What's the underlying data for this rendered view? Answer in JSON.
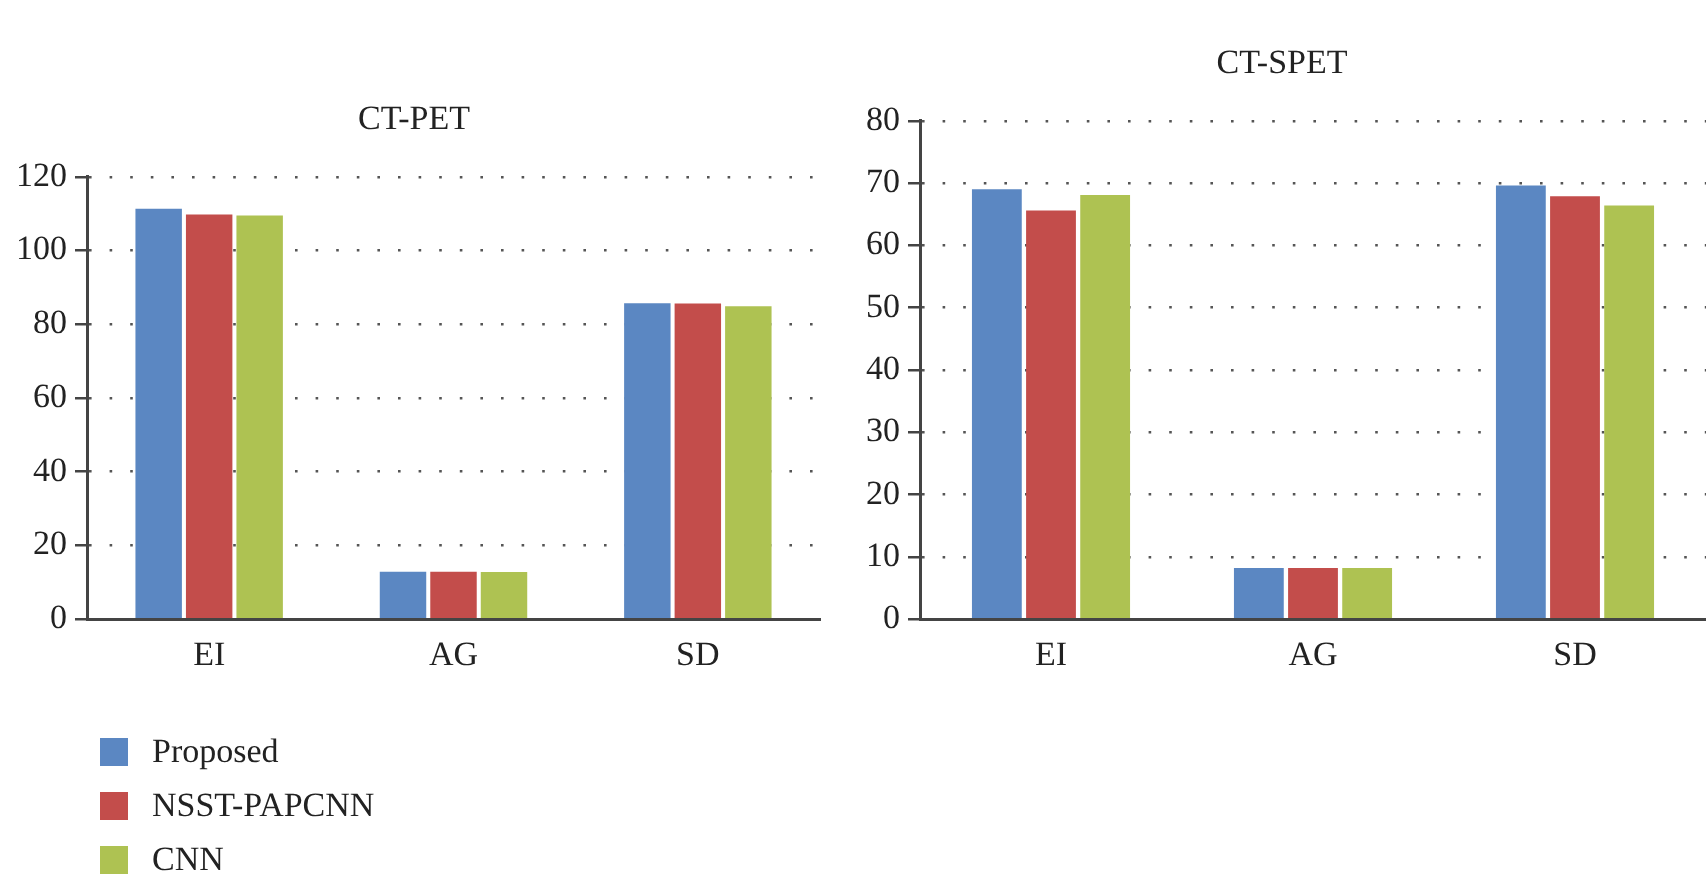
{
  "chart_data": [
    {
      "type": "bar",
      "title": "CT-PET",
      "categories": [
        "EI",
        "AG",
        "SD"
      ],
      "series": [
        {
          "name": "Proposed",
          "color": "#5b87c2",
          "values": [
            111.3,
            12.9,
            85.7
          ]
        },
        {
          "name": "NSST-PAPCNN",
          "color": "#c34d4b",
          "values": [
            109.8,
            12.9,
            85.6
          ]
        },
        {
          "name": "CNN",
          "color": "#aec252",
          "values": [
            109.5,
            12.8,
            84.9
          ]
        }
      ],
      "ylim": [
        0,
        120
      ],
      "yticks": [
        0,
        20,
        40,
        60,
        80,
        100,
        120
      ],
      "grid": "y",
      "legend": "bottom"
    },
    {
      "type": "bar",
      "title": "CT-SPET",
      "categories": [
        "EI",
        "AG",
        "SD"
      ],
      "series": [
        {
          "color": "#5b87c2",
          "values": [
            69.0,
            8.2,
            69.6
          ]
        },
        {
          "color": "#c34d4b",
          "values": [
            65.6,
            8.2,
            67.9
          ]
        },
        {
          "color": "#aec252",
          "values": [
            68.1,
            8.2,
            66.4
          ]
        }
      ],
      "ylim": [
        0,
        80
      ],
      "yticks": [
        0,
        10,
        20,
        30,
        40,
        50,
        60,
        70,
        80
      ],
      "grid": "y"
    }
  ]
}
